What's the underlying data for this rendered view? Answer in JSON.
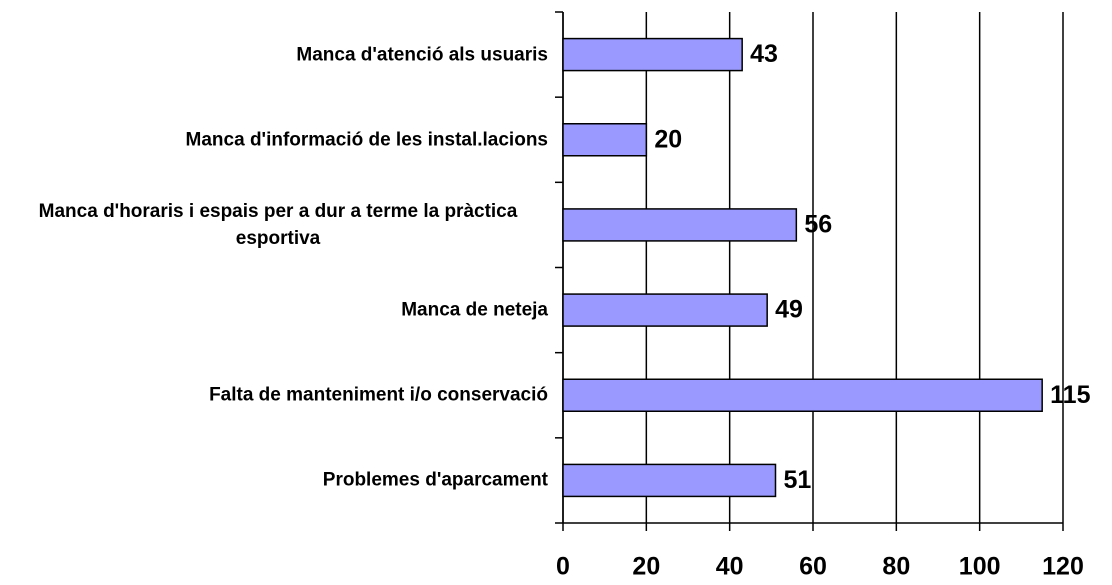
{
  "chart_data": {
    "type": "bar",
    "orientation": "horizontal",
    "categories": [
      "Manca d'atenció als usuaris",
      "Manca d'informació de les instal.lacions",
      "Manca d'horaris i espais per a dur a terme la pràctica esportiva",
      "Manca de neteja",
      "Falta de manteniment i/o conservació",
      "Problemes d'aparcament"
    ],
    "values": [
      43,
      20,
      56,
      49,
      115,
      51
    ],
    "color": "#9999ff",
    "xlim": [
      0,
      120
    ],
    "xticks": [
      0,
      20,
      40,
      60,
      80,
      100,
      120
    ],
    "grid": true
  }
}
